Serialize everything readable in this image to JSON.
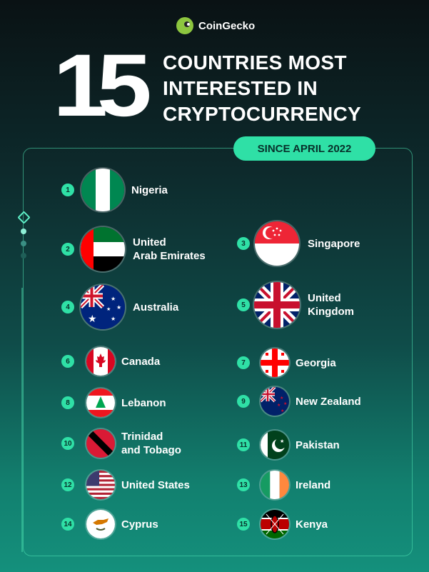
{
  "brand": {
    "name": "CoinGecko"
  },
  "headline": {
    "number": "15",
    "line1": "COUNTRIES MOST",
    "line2": "INTERESTED IN",
    "line3": "CRYPTOCURRENCY"
  },
  "badge": "SINCE APRIL 2022",
  "countries": [
    {
      "rank": "1",
      "name": "Nigeria",
      "flag": "nigeria-flag"
    },
    {
      "rank": "2",
      "name": "United\nArab Emirates",
      "flag": "uae-flag"
    },
    {
      "rank": "3",
      "name": "Singapore",
      "flag": "singapore-flag"
    },
    {
      "rank": "4",
      "name": "Australia",
      "flag": "australia-flag"
    },
    {
      "rank": "5",
      "name": "United\nKingdom",
      "flag": "uk-flag"
    },
    {
      "rank": "6",
      "name": "Canada",
      "flag": "canada-flag"
    },
    {
      "rank": "7",
      "name": "Georgia",
      "flag": "georgia-flag"
    },
    {
      "rank": "8",
      "name": "Lebanon",
      "flag": "lebanon-flag"
    },
    {
      "rank": "9",
      "name": "New Zealand",
      "flag": "new-zealand-flag"
    },
    {
      "rank": "10",
      "name": "Trinidad\nand Tobago",
      "flag": "trinidad-flag"
    },
    {
      "rank": "11",
      "name": "Pakistan",
      "flag": "pakistan-flag"
    },
    {
      "rank": "12",
      "name": "United States",
      "flag": "usa-flag"
    },
    {
      "rank": "13",
      "name": "Ireland",
      "flag": "ireland-flag"
    },
    {
      "rank": "14",
      "name": "Cyprus",
      "flag": "cyprus-flag"
    },
    {
      "rank": "15",
      "name": "Kenya",
      "flag": "kenya-flag"
    }
  ],
  "colors": {
    "accent": "#2fe0a6",
    "background_top": "#0a1214",
    "background_bottom": "#14907c"
  }
}
